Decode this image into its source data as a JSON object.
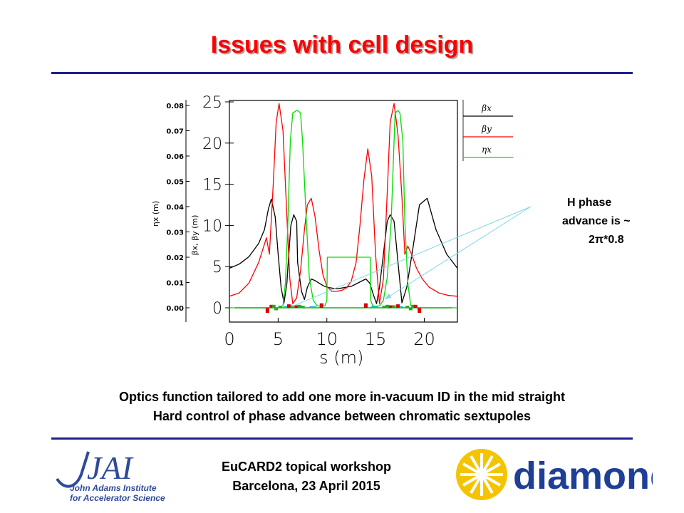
{
  "slide": {
    "title": "Issues with cell design",
    "annotation_lines": [
      "H phase",
      "advance is ~",
      "2π*0.8"
    ],
    "caption_lines": [
      "Optics function tailored to add one more in-vacuum ID in the mid straight",
      "Hard control of phase advance between chromatic sextupoles"
    ],
    "footer_lines": [
      "EuCARD2 topical workshop",
      "Barcelona, 23 April 2015"
    ],
    "logos": {
      "jai_mark": "JAI",
      "jai_name_lines": [
        "John Adams Institute",
        "for Accelerator Science"
      ],
      "diamond_text": "diamond"
    },
    "colors": {
      "title": "#ff0000",
      "rule": "#1f1f8f",
      "beta_x": "#000000",
      "beta_y": "#ff0000",
      "eta_x": "#00dd00",
      "arrow": "#80d8e8",
      "jai_blue": "#2f4a9a",
      "diamond_blue": "#1f3f96",
      "diamond_yellow": "#f5c400"
    }
  },
  "chart_data": {
    "type": "line",
    "xlabel": "s (m)",
    "ylabel_left": "ηx (m)",
    "ylabel_right": "βx, βy (m)",
    "x_ticks": [
      0,
      5,
      10,
      15,
      20
    ],
    "y_ticks": [
      0,
      5,
      10,
      15,
      20,
      25
    ],
    "eta_ticks": [
      "0.00",
      "0.01",
      "0.02",
      "0.03",
      "0.04",
      "0.05",
      "0.06",
      "0.07",
      "0.08"
    ],
    "xlim": [
      0,
      23.4
    ],
    "ylim": [
      0,
      25
    ],
    "eta_lim": [
      0,
      0.08
    ],
    "legend_position": "top-right, outside",
    "series": [
      {
        "name": "βx",
        "axis": "beta",
        "color": "#000000",
        "x": [
          0,
          1,
          2,
          3,
          3.6,
          4.0,
          4.3,
          4.7,
          5.0,
          5.3,
          5.6,
          5.9,
          6.0,
          6.3,
          6.6,
          6.9,
          7.0,
          7.4,
          7.7,
          8.0,
          8.4,
          8.8,
          9.2,
          9.6,
          10.0,
          10.5,
          11.0,
          11.5,
          12.0,
          12.5,
          13.0,
          13.5,
          14.0,
          14.4,
          14.8,
          15.1,
          15.4,
          15.8,
          16.2,
          16.5,
          16.9,
          17.3,
          17.7,
          18.2,
          18.8,
          19.5,
          20.3,
          21.2,
          22.3,
          23.4
        ],
        "y": [
          4.8,
          5.3,
          6.2,
          7.8,
          9.5,
          12.0,
          13.2,
          11.0,
          6.5,
          2.5,
          0.6,
          3.0,
          5.0,
          10.0,
          11.3,
          10.5,
          5.5,
          2.0,
          1.0,
          2.5,
          3.5,
          3.3,
          3.0,
          2.7,
          2.5,
          2.4,
          2.3,
          2.4,
          2.5,
          2.6,
          2.9,
          3.2,
          3.5,
          3.0,
          1.5,
          0.5,
          2.5,
          6.5,
          10.5,
          11.3,
          10.5,
          5.5,
          0.6,
          2.5,
          7.0,
          12.5,
          13.3,
          9.5,
          6.5,
          4.8
        ]
      },
      {
        "name": "βy",
        "axis": "beta",
        "color": "#ff0000",
        "x": [
          0,
          1,
          2,
          3,
          3.8,
          4.1,
          4.5,
          4.8,
          5.1,
          5.5,
          5.9,
          6.2,
          6.5,
          6.9,
          7.3,
          7.7,
          8.0,
          8.4,
          8.8,
          9.2,
          9.6,
          10.0,
          10.5,
          11.0,
          11.5,
          12.0,
          12.5,
          13.0,
          13.4,
          13.8,
          14.2,
          14.6,
          15.0,
          15.4,
          15.8,
          16.2,
          16.5,
          16.9,
          17.3,
          17.7,
          18.0,
          18.3,
          18.7,
          19.2,
          19.8,
          20.5,
          21.5,
          22.5,
          23.4
        ],
        "y": [
          1.4,
          1.8,
          3.0,
          5.5,
          8.5,
          6.5,
          15.0,
          22.5,
          24.8,
          21.5,
          11.0,
          3.5,
          0.5,
          1.2,
          4.5,
          9.5,
          12.5,
          13.3,
          11.0,
          7.0,
          4.0,
          2.6,
          2.0,
          2.0,
          2.1,
          2.4,
          3.2,
          5.5,
          10.0,
          15.5,
          19.3,
          16.0,
          6.5,
          0.5,
          3.5,
          14.0,
          22.5,
          24.8,
          21.0,
          13.5,
          6.5,
          7.5,
          6.5,
          4.8,
          3.5,
          2.5,
          1.8,
          1.5,
          1.4
        ]
      },
      {
        "name": "ηx",
        "axis": "eta",
        "color": "#00dd00",
        "x": [
          0,
          5.3,
          5.5,
          5.75,
          6.0,
          6.25,
          6.5,
          6.9,
          7.0,
          7.3,
          7.5,
          7.9,
          8.2,
          8.6,
          9.0,
          9.4,
          9.8,
          10.0,
          10.05,
          14.45,
          14.5,
          14.7,
          15.0,
          15.4,
          15.8,
          16.2,
          16.6,
          16.9,
          17.0,
          17.3,
          17.5,
          17.8,
          18.0,
          18.3,
          18.6,
          19.0,
          23.4
        ],
        "y": [
          0.0,
          0.0,
          0.001,
          0.01,
          0.034,
          0.066,
          0.077,
          0.078,
          0.078,
          0.077,
          0.066,
          0.034,
          0.012,
          0.003,
          0.0008,
          0.0006,
          0.0008,
          0.003,
          0.02,
          0.02,
          0.003,
          0.0008,
          0.0006,
          0.0008,
          0.003,
          0.012,
          0.034,
          0.066,
          0.077,
          0.078,
          0.077,
          0.066,
          0.034,
          0.01,
          0.001,
          0.0,
          0.0
        ]
      }
    ],
    "magnets": [
      {
        "s": 3.9,
        "h": -1.0,
        "color": "#dd0000"
      },
      {
        "s": 4.3,
        "h": 0.6,
        "color": "#dd0000"
      },
      {
        "s": 4.55,
        "h": 0.6,
        "color": "#22aa22"
      },
      {
        "s": 4.8,
        "h": -0.5,
        "color": "#22aa22"
      },
      {
        "s": 5.2,
        "h": 0.4,
        "color": "#22aa22"
      },
      {
        "s": 5.75,
        "h": 0.3,
        "color": "#00b8e0"
      },
      {
        "s": 6.1,
        "h": 0.7,
        "color": "#dd0000"
      },
      {
        "s": 6.45,
        "h": 0.5,
        "color": "#22aa22"
      },
      {
        "s": 6.85,
        "h": 0.5,
        "color": "#dd0000"
      },
      {
        "s": 7.2,
        "h": 0.6,
        "color": "#22aa22"
      },
      {
        "s": 7.55,
        "h": 0.4,
        "color": "#22aa22"
      },
      {
        "s": 8.4,
        "h": 0.3,
        "color": "#00b8e0"
      },
      {
        "s": 8.75,
        "h": 0.3,
        "color": "#00b8e0"
      },
      {
        "s": 9.45,
        "h": 0.9,
        "color": "#dd0000"
      },
      {
        "s": 14.0,
        "h": 0.9,
        "color": "#dd0000"
      },
      {
        "s": 14.7,
        "h": 0.3,
        "color": "#00b8e0"
      },
      {
        "s": 15.05,
        "h": 0.3,
        "color": "#00b8e0"
      },
      {
        "s": 15.85,
        "h": 0.4,
        "color": "#22aa22"
      },
      {
        "s": 16.2,
        "h": 0.6,
        "color": "#22aa22"
      },
      {
        "s": 16.55,
        "h": 0.5,
        "color": "#dd0000"
      },
      {
        "s": 16.9,
        "h": 0.5,
        "color": "#22aa22"
      },
      {
        "s": 17.3,
        "h": 0.7,
        "color": "#dd0000"
      },
      {
        "s": 17.65,
        "h": 0.3,
        "color": "#00b8e0"
      },
      {
        "s": 18.25,
        "h": 0.4,
        "color": "#22aa22"
      },
      {
        "s": 18.6,
        "h": -0.5,
        "color": "#22aa22"
      },
      {
        "s": 18.85,
        "h": 0.6,
        "color": "#22aa22"
      },
      {
        "s": 19.1,
        "h": 0.6,
        "color": "#dd0000"
      },
      {
        "s": 19.5,
        "h": -1.0,
        "color": "#dd0000"
      }
    ]
  }
}
